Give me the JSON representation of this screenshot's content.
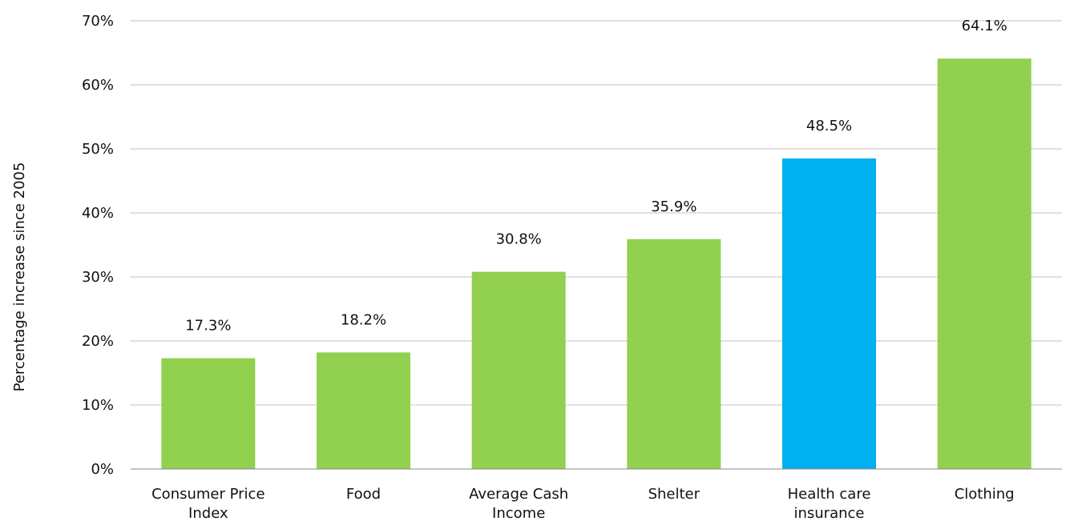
{
  "chart_data": {
    "type": "bar",
    "categories": [
      [
        "Consumer Price",
        "Index"
      ],
      [
        "Food"
      ],
      [
        "Average Cash",
        "Income"
      ],
      [
        "Shelter"
      ],
      [
        "Health care",
        "insurance"
      ],
      [
        "Clothing"
      ]
    ],
    "values": [
      17.3,
      18.2,
      30.8,
      35.9,
      48.5,
      64.1
    ],
    "data_labels": [
      "17.3%",
      "18.2%",
      "30.8%",
      "35.9%",
      "48.5%",
      "64.1%"
    ],
    "bar_colors": [
      "#92d050",
      "#92d050",
      "#92d050",
      "#92d050",
      "#00b0f0",
      "#92d050"
    ],
    "ylabel": "Percentage increase since 2005",
    "ylim": [
      0,
      70
    ],
    "yticks": [
      "0%",
      "10%",
      "20%",
      "30%",
      "40%",
      "50%",
      "60%",
      "70%"
    ],
    "grid": true,
    "colors": {
      "gridline": "#888888",
      "axis": "#888888"
    }
  }
}
